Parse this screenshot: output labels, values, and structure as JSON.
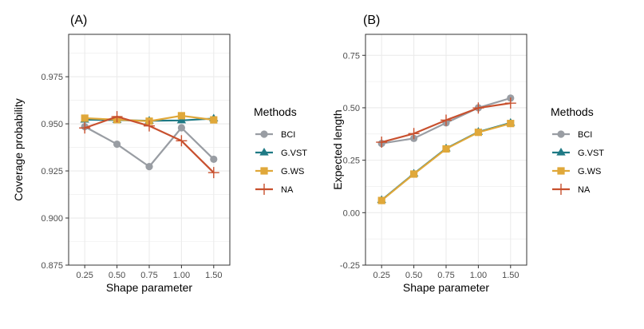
{
  "colors": {
    "BCI": "#999da3",
    "G.VST": "#1f7a85",
    "G.WS": "#e0a83a",
    "NA": "#c8502e",
    "grid": "#ebebeb",
    "panel_border": "#333333",
    "axis_text": "#4d4d4d",
    "text": "#000000"
  },
  "chart_data": [
    {
      "type": "line",
      "panel_label": "(A)",
      "xlabel": "Shape parameter",
      "ylabel": "Coverage probability",
      "categories": [
        "0.25",
        "0.50",
        "0.75",
        "1.00",
        "1.50"
      ],
      "ylim": [
        0.875,
        0.9975
      ],
      "yticks": [
        0.875,
        0.9,
        0.925,
        0.95,
        0.975
      ],
      "ytick_labels": [
        "0.875",
        "0.900",
        "0.925",
        "0.950",
        "0.975"
      ],
      "grid": true,
      "legend": {
        "title": "Methods",
        "position": "right",
        "entries": [
          "BCI",
          "G.VST",
          "G.WS",
          "NA"
        ]
      },
      "series": [
        {
          "name": "BCI",
          "marker": "circle",
          "values": [
            0.9485,
            0.9392,
            0.9273,
            0.9479,
            0.9312
          ]
        },
        {
          "name": "G.VST",
          "marker": "triangle",
          "values": [
            0.9522,
            0.952,
            0.9516,
            0.9518,
            0.9528
          ]
        },
        {
          "name": "G.WS",
          "marker": "square",
          "values": [
            0.953,
            0.9522,
            0.9514,
            0.9543,
            0.9521
          ]
        },
        {
          "name": "NA",
          "marker": "plus",
          "values": [
            0.9478,
            0.9538,
            0.9489,
            0.941,
            0.9241
          ]
        }
      ]
    },
    {
      "type": "line",
      "panel_label": "(B)",
      "xlabel": "Shape parameter",
      "ylabel": "Expected length",
      "categories": [
        "0.25",
        "0.50",
        "0.75",
        "1.00",
        "1.50"
      ],
      "ylim": [
        -0.25,
        0.85
      ],
      "yticks": [
        -0.25,
        0,
        0.25,
        0.5,
        0.75
      ],
      "ytick_labels": [
        "-0.25",
        "0.00",
        "0.25",
        "0.50",
        "0.75"
      ],
      "grid": true,
      "legend": {
        "title": "Methods",
        "position": "right",
        "entries": [
          "BCI",
          "G.VST",
          "G.WS",
          "NA"
        ]
      },
      "series": [
        {
          "name": "BCI",
          "marker": "circle",
          "values": [
            0.33,
            0.354,
            0.428,
            0.5,
            0.546
          ]
        },
        {
          "name": "G.VST",
          "marker": "triangle",
          "values": [
            0.06,
            0.186,
            0.306,
            0.385,
            0.428
          ]
        },
        {
          "name": "G.WS",
          "marker": "square",
          "values": [
            0.058,
            0.184,
            0.304,
            0.383,
            0.425
          ]
        },
        {
          "name": "NA",
          "marker": "plus",
          "values": [
            0.336,
            0.377,
            0.441,
            0.499,
            0.522
          ]
        }
      ]
    }
  ]
}
